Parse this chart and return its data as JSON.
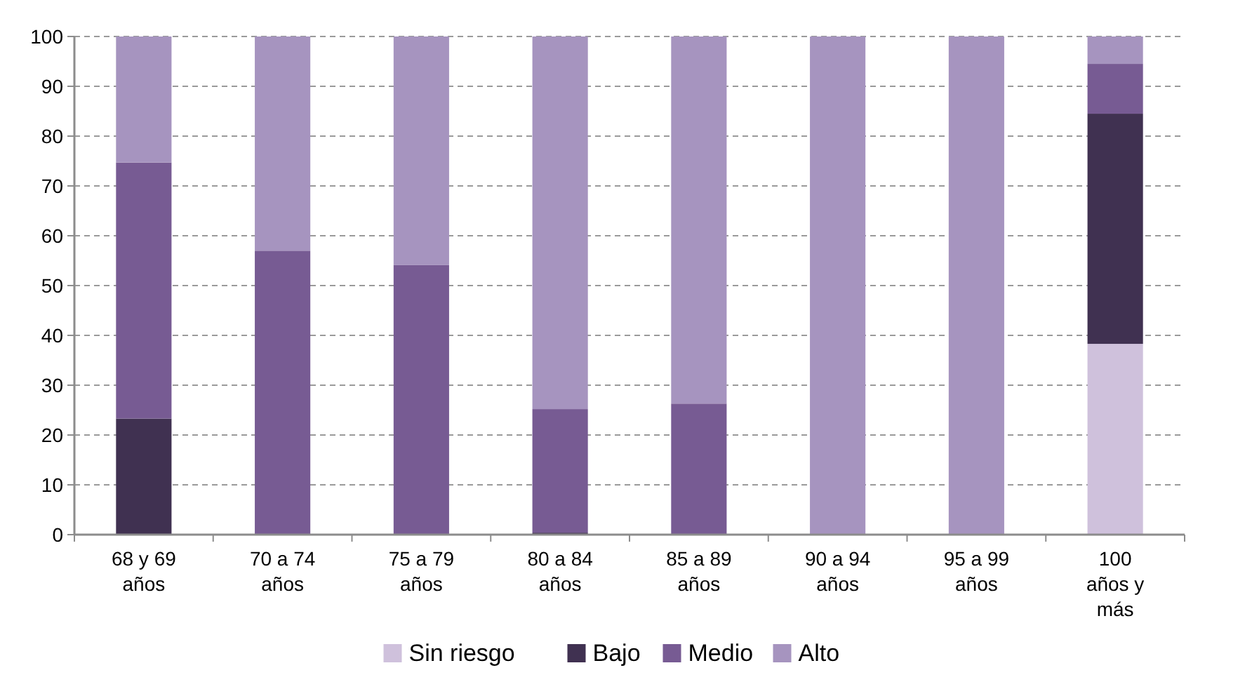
{
  "chart_data": {
    "type": "bar",
    "stacked": true,
    "categories": [
      "68 y 69 años",
      "70 a 74 años",
      "75 a 79 años",
      "80 a 84 años",
      "85 a 89 años",
      "90 a 94 años",
      "95 a 99 años",
      "100 años y más"
    ],
    "series": [
      {
        "name": "Sin riesgo",
        "color": "#cfc1dc",
        "values": [
          0,
          0,
          0,
          0,
          0,
          0,
          0,
          38.3
        ]
      },
      {
        "name": "Bajo",
        "color": "#403151",
        "values": [
          23.3,
          0,
          0,
          0.4,
          0,
          0,
          0,
          46.2
        ]
      },
      {
        "name": "Medio",
        "color": "#775b93",
        "values": [
          51.4,
          57.0,
          54.1,
          24.8,
          26.3,
          0,
          0,
          10.0
        ]
      },
      {
        "name": "Alto",
        "color": "#a694bf",
        "values": [
          25.3,
          43.0,
          45.9,
          74.8,
          73.7,
          100,
          100,
          5.5
        ]
      }
    ],
    "ylim": [
      0,
      100
    ],
    "yticks": [
      0,
      10,
      20,
      30,
      40,
      50,
      60,
      70,
      80,
      90,
      100
    ],
    "grid": "y",
    "legend": "bottom"
  }
}
